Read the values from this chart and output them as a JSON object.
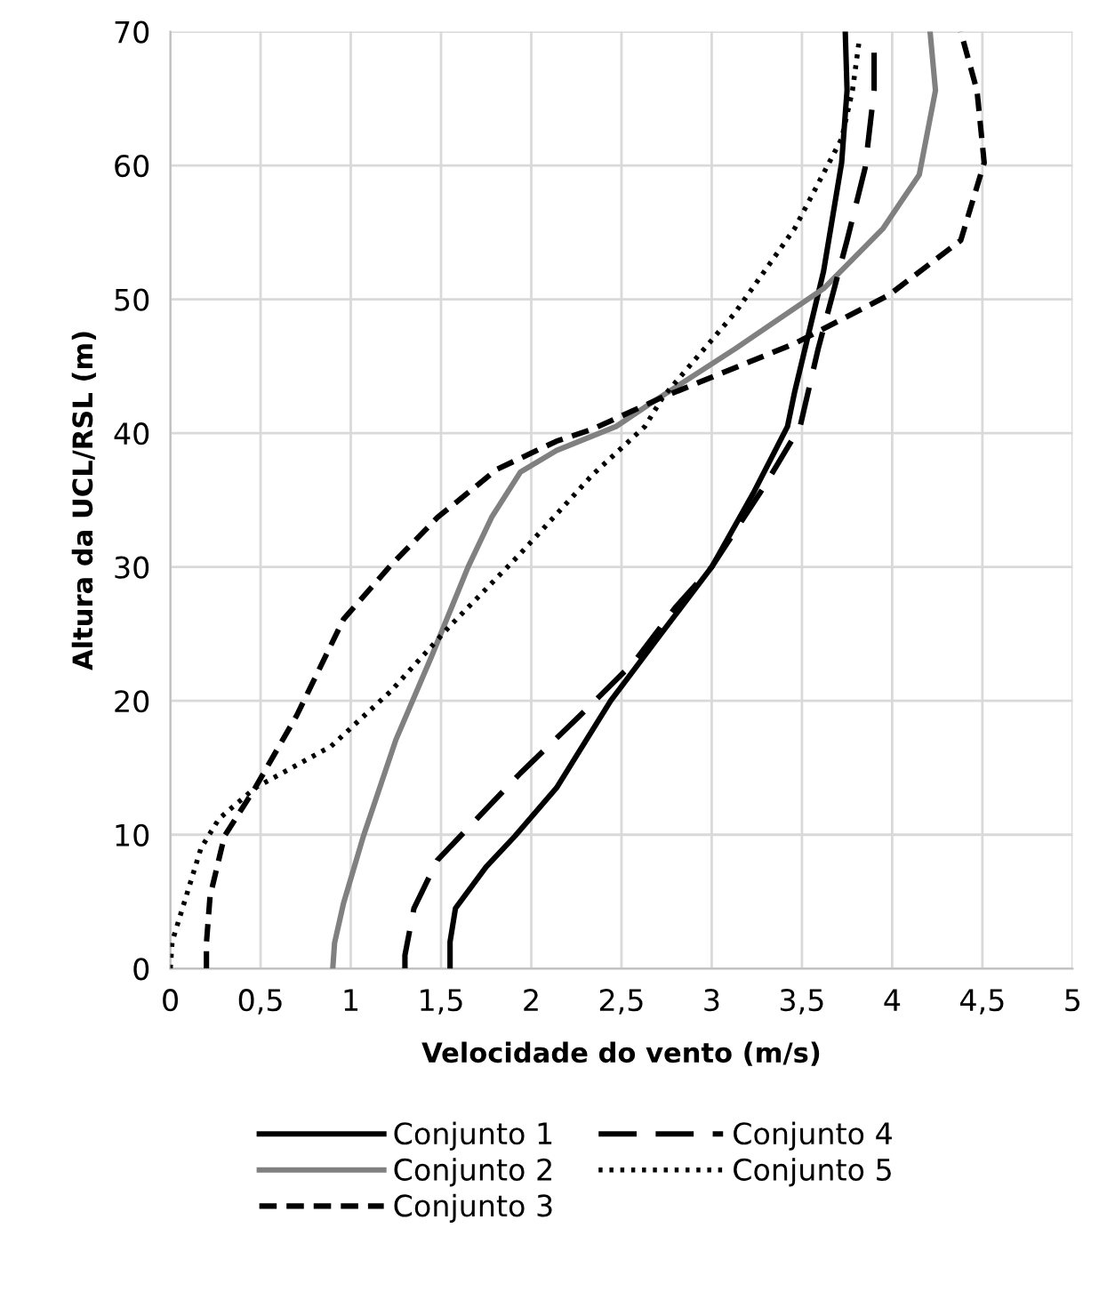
{
  "chart_data": {
    "type": "line",
    "xlabel": "Velocidade do vento (m/s)",
    "ylabel": "Altura da UCL/RSL (m)",
    "xlim": [
      0,
      5
    ],
    "xticks": [
      0,
      {
        "value": 0.5,
        "label": "0,5"
      },
      1,
      {
        "value": 1.5,
        "label": "1,5"
      },
      2,
      {
        "value": 2.5,
        "label": "2,5"
      },
      3,
      {
        "value": 3.5,
        "label": "3,5"
      },
      4,
      {
        "value": 4.5,
        "label": "4,5"
      },
      5
    ],
    "ylim": [
      0,
      70
    ],
    "yticks": [
      0,
      10,
      20,
      30,
      40,
      50,
      60,
      70
    ],
    "grid": true,
    "legend": "bottom",
    "marker": "none",
    "series": [
      {
        "name": "Conjunto 1",
        "color": "#000000",
        "line_style": "solid",
        "x": [
          1.55,
          1.55,
          1.58,
          1.75,
          1.91,
          2.14,
          2.44,
          2.73,
          3.0,
          3.23,
          3.42,
          3.46,
          3.62,
          3.72,
          3.75,
          3.74
        ],
        "values": [
          0,
          2,
          4.5,
          7.6,
          9.9,
          13.5,
          20,
          25.2,
          30,
          35.5,
          40.5,
          43.1,
          52.1,
          60.2,
          65.6,
          70
        ]
      },
      {
        "name": "Conjunto 2",
        "color": "#808080",
        "line_style": "solid",
        "x": [
          0.9,
          0.91,
          0.96,
          1.07,
          1.25,
          1.45,
          1.65,
          1.78,
          1.94,
          2.14,
          2.47,
          2.67,
          3.13,
          3.62,
          3.95,
          4.15,
          4.24,
          4.21
        ],
        "values": [
          0,
          1.9,
          4.9,
          9.9,
          17.1,
          23.4,
          30,
          33.7,
          37.1,
          38.7,
          40.5,
          42.3,
          46.3,
          50.8,
          55.3,
          59.3,
          65.6,
          70
        ]
      },
      {
        "name": "Conjunto 3",
        "color": "#000000",
        "line_style": "dashed",
        "x": [
          0.2,
          0.2,
          0.22,
          0.3,
          0.47,
          0.7,
          0.96,
          1.22,
          1.48,
          1.81,
          2.14,
          2.34,
          2.73,
          3.46,
          3.98,
          4.38,
          4.51,
          4.47,
          4.38
        ],
        "values": [
          0,
          1.9,
          5.4,
          9.9,
          13.5,
          18.9,
          26.1,
          30.1,
          33.7,
          37.3,
          39.4,
          40.3,
          42.7,
          46.7,
          50.3,
          54.4,
          60.2,
          65.6,
          70
        ]
      },
      {
        "name": "Conjunto 4",
        "color": "#000000",
        "line_style": "long_dashed",
        "x": [
          1.3,
          1.3,
          1.35,
          1.48,
          1.65,
          1.94,
          2.27,
          2.57,
          2.8,
          3.0,
          3.29,
          3.49,
          3.59,
          3.75,
          3.85,
          3.9,
          3.9
        ],
        "values": [
          0,
          1,
          4.5,
          8.1,
          10.5,
          14.6,
          18.9,
          22.9,
          27,
          30,
          36,
          40.5,
          46.3,
          54.4,
          59.8,
          65.6,
          69
        ]
      },
      {
        "name": "Conjunto 5",
        "color": "#000000",
        "line_style": "dotted",
        "x": [
          0.0,
          0.01,
          0.17,
          0.27,
          0.47,
          0.89,
          1.22,
          1.55,
          1.94,
          2.34,
          2.63,
          2.73,
          3.13,
          3.46,
          3.72,
          3.78,
          3.82
        ],
        "values": [
          0,
          2,
          9,
          11.2,
          13.5,
          16.6,
          20.7,
          25.6,
          31,
          36.9,
          40.5,
          42.7,
          49,
          55.3,
          62,
          65.6,
          69.6
        ]
      }
    ]
  }
}
